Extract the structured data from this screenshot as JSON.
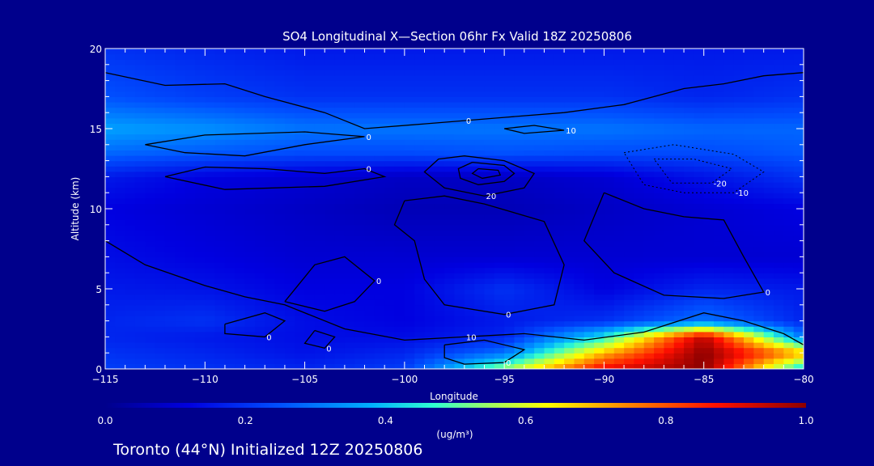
{
  "chart_data": {
    "type": "heatmap",
    "title": "SO4 Longitudinal X—Section 06hr  Fx Valid 18Z 20250806",
    "xlabel": "Longitude",
    "ylabel": "Altitude (km)",
    "xlim": [
      -115,
      -80
    ],
    "ylim": [
      0,
      20
    ],
    "x_ticks": [
      -115,
      -110,
      -105,
      -100,
      -95,
      -90,
      -85,
      -80
    ],
    "x_tick_labels": [
      "−115",
      "−110",
      "−105",
      "−100",
      "−95",
      "−90",
      "−85",
      "−80"
    ],
    "y_ticks": [
      0,
      5,
      10,
      15,
      20
    ],
    "colorbar": {
      "label": "(ug/m³)",
      "range": [
        0.0,
        1.0
      ],
      "ticks": [
        "0.0",
        "0.2",
        "0.4",
        "0.6",
        "0.8",
        "1.0"
      ]
    },
    "field_lon": [
      -115,
      -110,
      -105,
      -100,
      -95,
      -90,
      -85,
      -80
    ],
    "field_alt": [
      0,
      1,
      2,
      3,
      5,
      7,
      10,
      12,
      13.5,
      15,
      17,
      20
    ],
    "field_values": [
      [
        0.22,
        0.2,
        0.18,
        0.22,
        0.55,
        0.9,
        1.0,
        0.4
      ],
      [
        0.2,
        0.18,
        0.15,
        0.18,
        0.3,
        0.7,
        1.0,
        0.7
      ],
      [
        0.18,
        0.16,
        0.14,
        0.14,
        0.18,
        0.45,
        0.95,
        0.3
      ],
      [
        0.18,
        0.2,
        0.14,
        0.12,
        0.16,
        0.2,
        0.3,
        0.18
      ],
      [
        0.16,
        0.15,
        0.12,
        0.12,
        0.2,
        0.12,
        0.18,
        0.16
      ],
      [
        0.14,
        0.12,
        0.1,
        0.1,
        0.1,
        0.1,
        0.1,
        0.1
      ],
      [
        0.12,
        0.1,
        0.08,
        0.06,
        0.06,
        0.08,
        0.1,
        0.12
      ],
      [
        0.16,
        0.12,
        0.1,
        0.08,
        0.08,
        0.1,
        0.15,
        0.2
      ],
      [
        0.28,
        0.26,
        0.24,
        0.24,
        0.25,
        0.24,
        0.24,
        0.26
      ],
      [
        0.36,
        0.34,
        0.3,
        0.3,
        0.3,
        0.3,
        0.28,
        0.28
      ],
      [
        0.25,
        0.22,
        0.2,
        0.2,
        0.2,
        0.2,
        0.18,
        0.2
      ],
      [
        0.2,
        0.18,
        0.16,
        0.16,
        0.16,
        0.16,
        0.16,
        0.16
      ]
    ],
    "contours": [
      {
        "label": "0",
        "dashed": false,
        "points": [
          [
            -115,
            18.5
          ],
          [
            -112,
            17.7
          ],
          [
            -109,
            17.8
          ],
          [
            -107,
            17
          ],
          [
            -104,
            16
          ],
          [
            -102,
            15
          ],
          [
            -99,
            15.3
          ],
          [
            -97,
            15.5
          ],
          [
            -95,
            15.7
          ],
          [
            -92,
            16
          ],
          [
            -89,
            16.5
          ],
          [
            -86,
            17.5
          ],
          [
            -84,
            17.8
          ],
          [
            -82,
            18.3
          ],
          [
            -80,
            18.5
          ]
        ]
      },
      {
        "label": "0",
        "dashed": false,
        "points": [
          [
            -112,
            12
          ],
          [
            -110,
            12.6
          ],
          [
            -107,
            12.5
          ],
          [
            -104,
            12.2
          ],
          [
            -102,
            12.5
          ],
          [
            -101,
            12
          ],
          [
            -104,
            11.4
          ],
          [
            -109,
            11.2
          ],
          [
            -112,
            12
          ]
        ]
      },
      {
        "label": "0",
        "dashed": false,
        "points": [
          [
            -100,
            10.5
          ],
          [
            -98,
            10.8
          ],
          [
            -96,
            10.3
          ],
          [
            -93,
            9.2
          ],
          [
            -92,
            6.5
          ],
          [
            -92.5,
            4
          ],
          [
            -95,
            3.4
          ],
          [
            -98,
            4
          ],
          [
            -99,
            5.6
          ],
          [
            -99.5,
            8
          ],
          [
            -100.5,
            9
          ],
          [
            -100,
            10.5
          ]
        ]
      },
      {
        "label": "0",
        "dashed": false,
        "points": [
          [
            -106,
            4.2
          ],
          [
            -104.5,
            6.5
          ],
          [
            -103,
            7
          ],
          [
            -101.5,
            5.5
          ],
          [
            -102.5,
            4.2
          ],
          [
            -104,
            3.6
          ],
          [
            -106,
            4.2
          ]
        ]
      },
      {
        "label": "0",
        "dashed": false,
        "points": [
          [
            -109,
            2.8
          ],
          [
            -107,
            3.5
          ],
          [
            -106,
            3
          ],
          [
            -107,
            2
          ],
          [
            -109,
            2.2
          ],
          [
            -109,
            2.8
          ]
        ]
      },
      {
        "label": "0",
        "dashed": false,
        "points": [
          [
            -104.5,
            2.4
          ],
          [
            -103.5,
            2
          ],
          [
            -104,
            1.3
          ],
          [
            -105,
            1.6
          ],
          [
            -104.5,
            2.4
          ]
        ]
      },
      {
        "label": "0",
        "dashed": false,
        "points": [
          [
            -98,
            1.5
          ],
          [
            -96,
            1.8
          ],
          [
            -94,
            1.2
          ],
          [
            -95,
            0.4
          ],
          [
            -97,
            0.3
          ],
          [
            -98,
            0.7
          ],
          [
            -98,
            1.5
          ]
        ]
      },
      {
        "label": "10",
        "dashed": false,
        "points": [
          [
            -115,
            8
          ],
          [
            -113,
            6.5
          ],
          [
            -110,
            5.2
          ],
          [
            -108,
            4.5
          ],
          [
            -106,
            4
          ],
          [
            -103,
            2.5
          ],
          [
            -100,
            1.8
          ],
          [
            -97,
            2
          ],
          [
            -94,
            2.2
          ],
          [
            -91,
            1.8
          ],
          [
            -88,
            2.3
          ],
          [
            -85,
            3.5
          ],
          [
            -83,
            3
          ],
          [
            -81,
            2.2
          ],
          [
            -80,
            1.5
          ]
        ]
      },
      {
        "label": "20",
        "dashed": false,
        "points": [
          [
            -97,
            13.3
          ],
          [
            -95,
            13
          ],
          [
            -93.5,
            12.2
          ],
          [
            -94,
            11.3
          ],
          [
            -96,
            10.8
          ],
          [
            -98,
            11.3
          ],
          [
            -99,
            12.3
          ],
          [
            -98.3,
            13.1
          ],
          [
            -97,
            13.3
          ]
        ]
      },
      {
        "label": "",
        "dashed": false,
        "points": [
          [
            -96.6,
            12.9
          ],
          [
            -95,
            12.7
          ],
          [
            -94.5,
            12.2
          ],
          [
            -95,
            11.7
          ],
          [
            -96.3,
            11.5
          ],
          [
            -97.2,
            11.9
          ],
          [
            -97.3,
            12.5
          ],
          [
            -96.6,
            12.9
          ]
        ]
      },
      {
        "label": "",
        "dashed": false,
        "points": [
          [
            -96.3,
            12.5
          ],
          [
            -95.3,
            12.4
          ],
          [
            -95.2,
            12.1
          ],
          [
            -96.1,
            11.9
          ],
          [
            -96.6,
            12.2
          ],
          [
            -96.3,
            12.5
          ]
        ]
      },
      {
        "label": "0",
        "dashed": false,
        "points": [
          [
            -113,
            14
          ],
          [
            -111,
            13.5
          ],
          [
            -108,
            13.3
          ],
          [
            -105,
            14
          ],
          [
            -102,
            14.5
          ],
          [
            -105,
            14.8
          ],
          [
            -110,
            14.6
          ],
          [
            -113,
            14
          ]
        ]
      },
      {
        "label": "10",
        "dashed": false,
        "points": [
          [
            -95,
            15
          ],
          [
            -93.5,
            15.2
          ],
          [
            -92,
            14.9
          ],
          [
            -94,
            14.7
          ],
          [
            -95,
            15
          ]
        ]
      },
      {
        "label": "0",
        "dashed": false,
        "points": [
          [
            -90,
            11
          ],
          [
            -88,
            10
          ],
          [
            -86,
            9.5
          ],
          [
            -84,
            9.3
          ],
          [
            -83,
            7
          ],
          [
            -82,
            4.8
          ],
          [
            -84,
            4.4
          ],
          [
            -87,
            4.6
          ],
          [
            -89.5,
            6
          ],
          [
            -91,
            8
          ],
          [
            -90,
            11
          ]
        ]
      },
      {
        "label": "-10",
        "dashed": true,
        "points": [
          [
            -89,
            13.5
          ],
          [
            -86.5,
            14
          ],
          [
            -83.5,
            13.4
          ],
          [
            -82,
            12.3
          ],
          [
            -83.5,
            11
          ],
          [
            -86,
            11
          ],
          [
            -88,
            11.5
          ],
          [
            -89,
            13.5
          ]
        ]
      },
      {
        "label": "-20",
        "dashed": true,
        "points": [
          [
            -87.5,
            13.1
          ],
          [
            -85.5,
            13.1
          ],
          [
            -83.6,
            12.5
          ],
          [
            -84.6,
            11.6
          ],
          [
            -86.6,
            11.6
          ],
          [
            -87.5,
            13.1
          ]
        ]
      }
    ]
  },
  "footer": {
    "caption": "Toronto (44°N) Initialized 12Z 20250806"
  },
  "colors": {
    "background": "#00008c",
    "contour": "#000000",
    "text": "#ffffff"
  }
}
